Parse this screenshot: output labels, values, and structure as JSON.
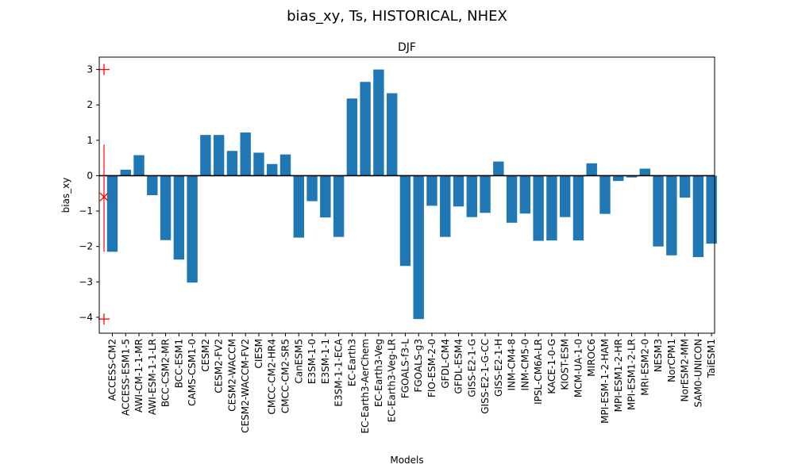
{
  "figure": {
    "suptitle": "bias_xy, Ts, HISTORICAL, NHEX"
  },
  "chart_data": {
    "type": "bar",
    "title": "DJF",
    "xlabel": "Models",
    "ylabel": "bias_xy",
    "ylim": [
      -4.45,
      3.35
    ],
    "yticks": [
      3,
      2,
      1,
      0,
      -1,
      -2,
      -3,
      -4
    ],
    "ytick_labels": [
      "3",
      "2",
      "1",
      "0",
      "−1",
      "−2",
      "−3",
      "−4"
    ],
    "grid": false,
    "bar_color": "#1f77b4",
    "zero_line_color": "#000000",
    "categories": [
      "ACCESS-CM2",
      "ACCESS-ESM1-5",
      "AWI-CM-1-1-MR",
      "AWI-ESM-1-1-LR",
      "BCC-CSM2-MR",
      "BCC-ESM1",
      "CAMS-CSM1-0",
      "CESM2",
      "CESM2-FV2",
      "CESM2-WACCM",
      "CESM2-WACCM-FV2",
      "CIESM",
      "CMCC-CM2-HR4",
      "CMCC-CM2-SR5",
      "CanESM5",
      "E3SM-1-0",
      "E3SM-1-1",
      "E3SM-1-1-ECA",
      "EC-Earth3",
      "EC-Earth3-AerChem",
      "EC-Earth3-Veg",
      "EC-Earth3-Veg-LR",
      "FGOALS-f3-L",
      "FGOALS-g3",
      "FIO-ESM-2-0",
      "GFDL-CM4",
      "GFDL-ESM4",
      "GISS-E2-1-G",
      "GISS-E2-1-G-CC",
      "GISS-E2-1-H",
      "INM-CM4-8",
      "INM-CM5-0",
      "IPSL-CM6A-LR",
      "KACE-1-0-G",
      "KIOST-ESM",
      "MCM-UA-1-0",
      "MIROC6",
      "MPI-ESM-1-2-HAM",
      "MPI-ESM1-2-HR",
      "MPI-ESM1-2-LR",
      "MRI-ESM2-0",
      "NESM3",
      "NorCPM1",
      "NorESM2-MM",
      "SAM0-UNICON",
      "TaiESM1"
    ],
    "values": [
      -2.15,
      0.17,
      0.58,
      -0.55,
      -1.82,
      -2.37,
      -3.02,
      1.15,
      1.15,
      0.7,
      1.22,
      0.65,
      0.33,
      0.6,
      -1.75,
      -0.72,
      -1.18,
      -1.73,
      2.18,
      2.65,
      3.0,
      2.33,
      -2.55,
      -4.05,
      -0.85,
      -1.73,
      -0.87,
      -1.17,
      -1.05,
      0.4,
      -1.33,
      -1.07,
      -1.84,
      -1.83,
      -1.17,
      -1.83,
      0.35,
      -1.08,
      -0.15,
      -0.05,
      0.2,
      -2.0,
      -2.25,
      -0.62,
      -2.3,
      -1.92
    ],
    "summary_marker": {
      "color": "#ff0000",
      "mean": -0.6,
      "spread_low": -2.15,
      "spread_high": 0.88,
      "max": 3.0,
      "min": -4.05
    }
  }
}
